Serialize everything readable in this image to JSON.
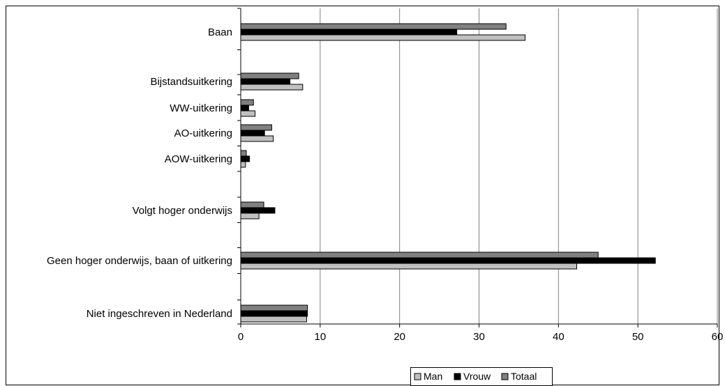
{
  "chart_data": {
    "type": "bar",
    "orientation": "horizontal",
    "categories": [
      "Baan",
      "",
      "Bijstandsuitkering",
      "WW-uitkering",
      "AO-uitkering",
      "AOW-uitkering",
      "",
      "Volgt hoger onderwijs",
      "",
      "Geen hoger onderwijs, baan of uitkering",
      "",
      "Niet ingeschreven in Nederland"
    ],
    "series": [
      {
        "name": "Man",
        "color": "#c0c0c0",
        "values": [
          35.8,
          null,
          7.8,
          1.8,
          4.1,
          0.6,
          null,
          2.3,
          null,
          42.3,
          null,
          8.3
        ]
      },
      {
        "name": "Vrouw",
        "color": "#000000",
        "values": [
          27.2,
          null,
          6.2,
          1.0,
          3.0,
          1.1,
          null,
          4.3,
          null,
          52.2,
          null,
          8.4
        ]
      },
      {
        "name": "Totaal",
        "color": "#808080",
        "values": [
          33.4,
          null,
          7.3,
          1.6,
          3.9,
          0.7,
          null,
          2.9,
          null,
          45.0,
          null,
          8.4
        ]
      }
    ],
    "xlim": [
      0,
      60
    ],
    "xticks": [
      "0",
      "10",
      "20",
      "30",
      "40",
      "50",
      "60"
    ],
    "grid": "vertical",
    "legend": "bottom",
    "title": "",
    "xlabel": "",
    "ylabel": ""
  }
}
